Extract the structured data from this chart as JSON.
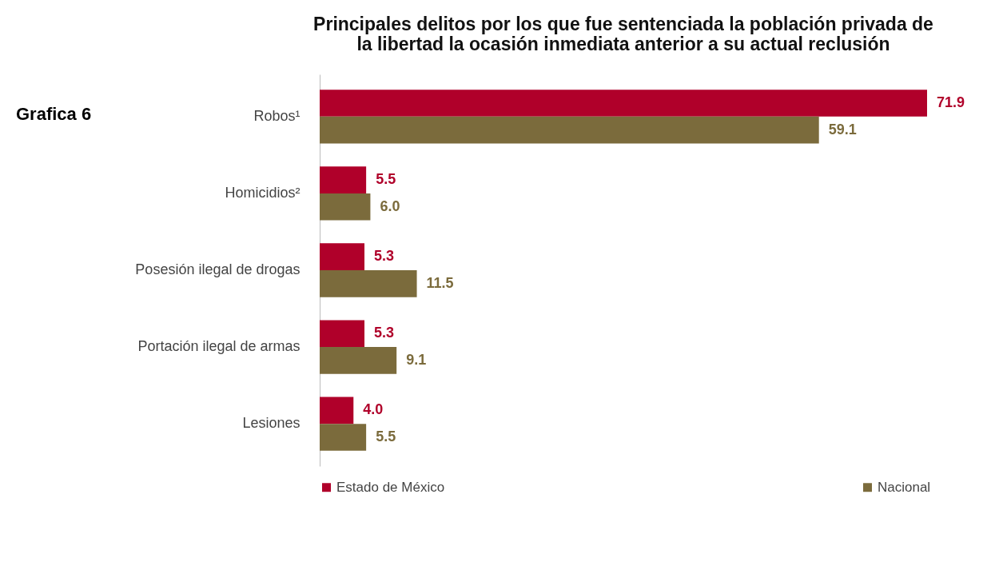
{
  "chart_data": {
    "type": "bar",
    "orientation": "horizontal",
    "title": "Principales delitos por los que fue sentenciada la población privada de la libertad la ocasión inmediata anterior a su actual reclusión",
    "categories": [
      "Robos¹",
      "Homicidios²",
      "Posesión ilegal de drogas",
      "Portación ilegal de armas",
      "Lesiones"
    ],
    "series": [
      {
        "name": "Estado de México",
        "color": "#b0002a",
        "values": [
          71.9,
          5.5,
          5.3,
          5.3,
          4.0
        ],
        "value_labels": [
          "71.9",
          "5.5",
          "5.3",
          "5.3",
          "4.0"
        ]
      },
      {
        "name": "Nacional",
        "color": "#7b6b3c",
        "values": [
          59.1,
          6.0,
          11.5,
          9.1,
          5.5
        ],
        "value_labels": [
          "59.1",
          "6.0",
          "11.5",
          "9.1",
          "5.5"
        ]
      }
    ],
    "legend": "bottom",
    "annotations": [
      "Grafica 6"
    ]
  }
}
